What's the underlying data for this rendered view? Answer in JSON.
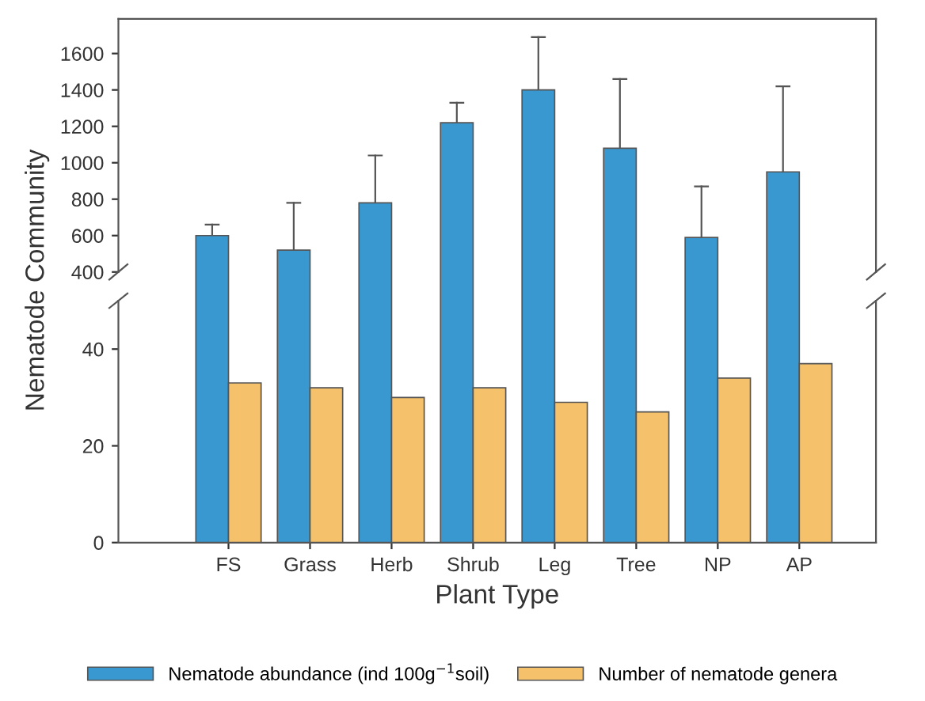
{
  "chart_data": [
    {
      "type": "bar",
      "ylabel": "Nematode Community",
      "ylim": [
        400,
        1790
      ],
      "yticks": [
        400,
        600,
        800,
        1000,
        1200,
        1400,
        1600
      ],
      "tick_labels": "y",
      "grid": false,
      "series": [
        {
          "name": "Nematode abundance (ind 100g$^{−1}$soil)",
          "color": "#3a98d0",
          "values": [
            600,
            520,
            780,
            1220,
            1400,
            1080,
            590,
            950
          ],
          "errors": [
            [
              600,
              660
            ],
            [
              520,
              780
            ],
            [
              780,
              1040
            ],
            [
              1220,
              1330
            ],
            [
              1400,
              1690
            ],
            [
              1080,
              1460
            ],
            [
              590,
              870
            ],
            [
              950,
              1420
            ]
          ]
        }
      ]
    },
    {
      "type": "bar",
      "xlabel": "Plant Type",
      "categories": [
        "FS",
        "Grass",
        "Herb",
        "Shrub",
        "Leg",
        "Tree",
        "NP",
        "AP"
      ],
      "ylim": [
        0,
        50
      ],
      "yticks": [
        0,
        20,
        40
      ],
      "grid": false,
      "legend": "bottom",
      "series": [
        {
          "name": "Number of nematode genera",
          "color": "#f5c26b",
          "values": [
            33,
            32,
            30,
            32,
            29,
            27,
            34,
            37
          ]
        }
      ]
    }
  ]
}
